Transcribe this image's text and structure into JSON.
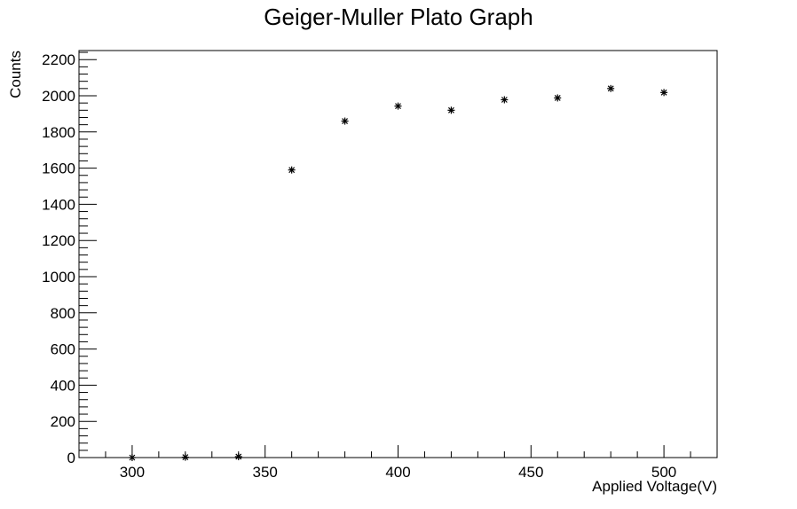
{
  "chart_data": {
    "type": "scatter",
    "title": "Geiger-Muller Plato Graph",
    "xlabel": "Applied Voltage(V)",
    "ylabel": "Counts",
    "xlim": [
      280,
      520
    ],
    "ylim": [
      0,
      2250
    ],
    "x_ticks": [
      300,
      350,
      400,
      450,
      500
    ],
    "y_ticks": [
      0,
      200,
      400,
      600,
      800,
      1000,
      1200,
      1400,
      1600,
      1800,
      2000,
      2200
    ],
    "marker": "asterisk",
    "grid": false,
    "series": [
      {
        "x": [
          300,
          320,
          340,
          360,
          380,
          400,
          420,
          440,
          460,
          480,
          500
        ],
        "y": [
          0,
          2,
          5,
          1590,
          1860,
          1943,
          1920,
          1978,
          1988,
          2040,
          2018
        ]
      }
    ]
  }
}
